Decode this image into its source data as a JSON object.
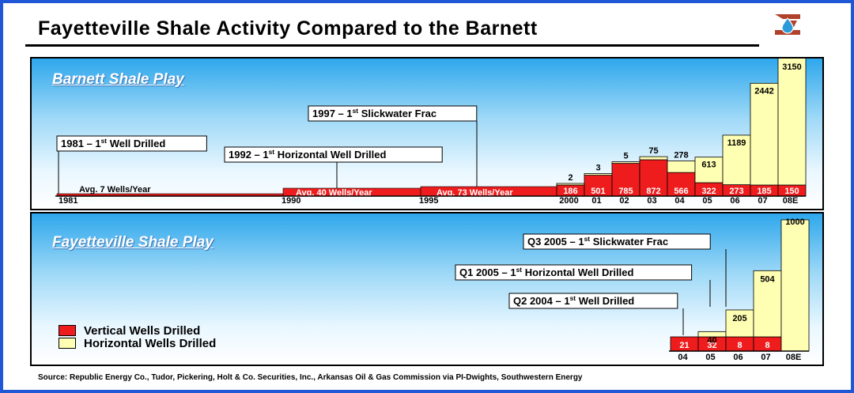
{
  "title": "Fayetteville Shale Activity Compared to the Barnett",
  "source": "Source: Republic Energy Co., Tudor, Pickering, Holt & Co. Securities, Inc., Arkansas Oil & Gas Commission via PI-Dwights, Southwestern Energy",
  "colors": {
    "vertical": "#ee1c1c",
    "horizontal": "#ffffb3",
    "frame": "#1f57d6"
  },
  "legend": {
    "vertical_label": "Vertical Wells Drilled",
    "horizontal_label": "Horizontal Wells Drilled"
  },
  "chart_data": [
    {
      "type": "bar",
      "title": "Barnett Shale Play",
      "categories": [
        "2000",
        "01",
        "02",
        "03",
        "04",
        "05",
        "06",
        "07",
        "08E"
      ],
      "series": [
        {
          "name": "Vertical Wells Drilled",
          "values": [
            186,
            501,
            785,
            872,
            566,
            322,
            273,
            185,
            150
          ]
        },
        {
          "name": "Horizontal Wells Drilled",
          "values": [
            2,
            3,
            5,
            75,
            278,
            613,
            1189,
            2442,
            3150
          ]
        }
      ],
      "periods": [
        {
          "label": "Avg. 7 Wells/Year"
        },
        {
          "label": "Avg. 40 Wells/Year"
        },
        {
          "label": "Avg. 73 Wells/Year"
        }
      ],
      "timeline_labels": [
        "1981",
        "1990",
        "1995"
      ],
      "annotations": [
        {
          "text": "1981 – 1st Well Drilled"
        },
        {
          "text": "1992 – 1st Horizontal Well Drilled"
        },
        {
          "text": "1997 – 1st Slickwater Frac"
        }
      ]
    },
    {
      "type": "bar",
      "title": "Fayetteville Shale Play",
      "categories": [
        "04",
        "05",
        "06",
        "07",
        "08E"
      ],
      "series": [
        {
          "name": "Vertical Wells Drilled",
          "values": [
            21,
            32,
            8,
            8,
            0
          ]
        },
        {
          "name": "Horizontal Wells Drilled",
          "values": [
            0,
            40,
            205,
            504,
            1000
          ]
        }
      ],
      "annotations": [
        {
          "text": "Q3 2005 – 1st Slickwater Frac"
        },
        {
          "text": "Q1 2005 – 1st Horizontal Well Drilled"
        },
        {
          "text": "Q2 2004 – 1st Well Drilled"
        }
      ]
    }
  ]
}
